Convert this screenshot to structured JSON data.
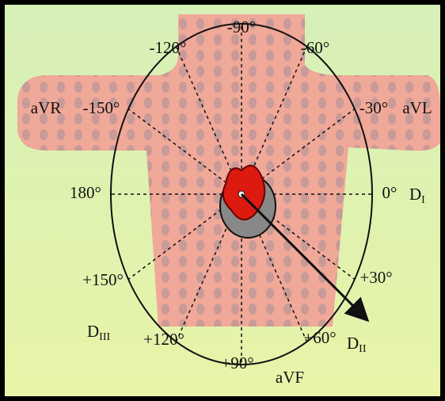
{
  "labels": {
    "m90": "-90°",
    "m60": "-60°",
    "m120": "-120°",
    "m150": "-150°",
    "m30": "-30°",
    "avr": "aVR",
    "avl": "aVL",
    "d180": "180°",
    "d0": "0°",
    "p150": "+150°",
    "p30": "+30°",
    "p120": "+120°",
    "p60": "+60°",
    "p90": "+90°",
    "avf": "aVF",
    "di": {
      "letter": "D",
      "subscript": "I"
    },
    "dii": {
      "letter": "D",
      "subscript": "II"
    },
    "diii": {
      "letter": "D",
      "subscript": "III"
    }
  }
}
